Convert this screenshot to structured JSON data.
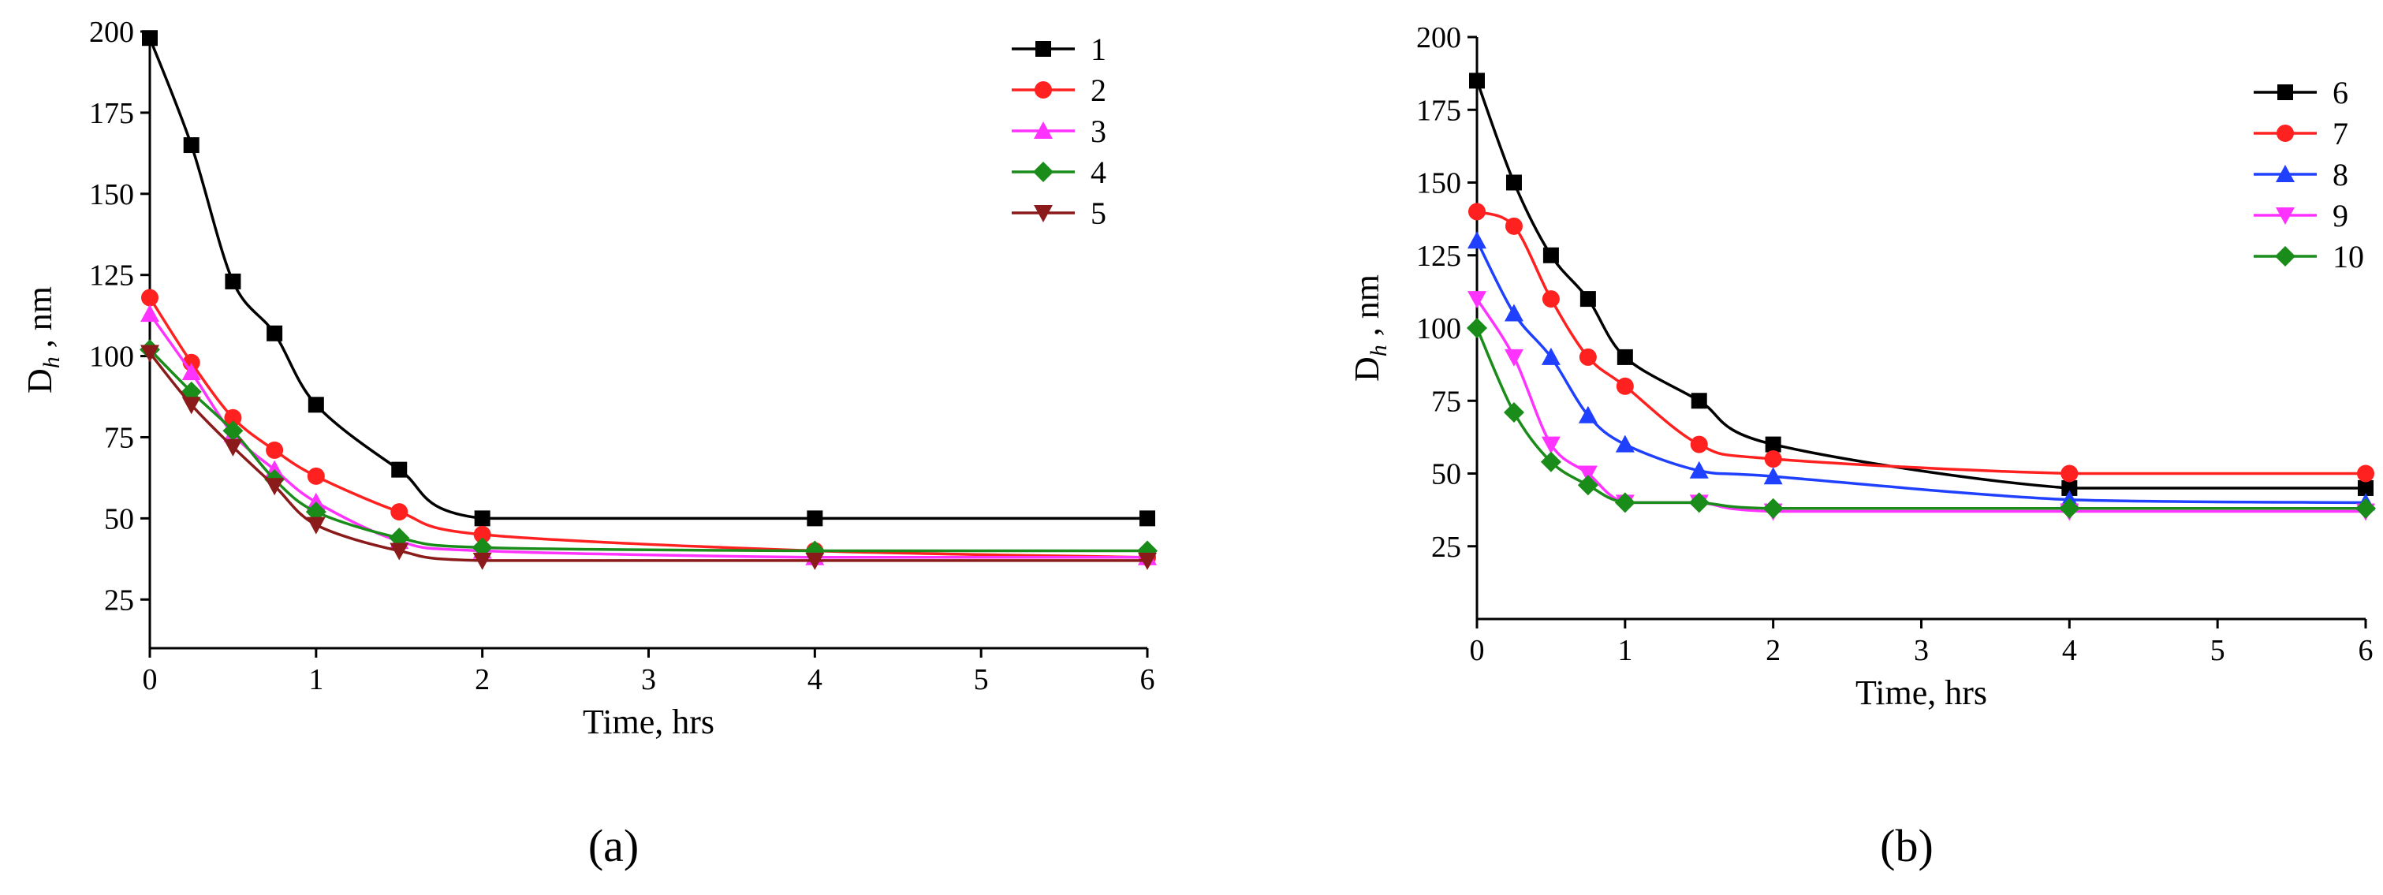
{
  "chart_data": [
    {
      "type": "line",
      "panel": "a",
      "caption": "(a)",
      "xlabel": "Time, hrs",
      "ylabel_main": "D",
      "ylabel_sub": "h",
      "ylabel_unit": " , nm",
      "xlim": [
        0,
        6
      ],
      "ylim": [
        10,
        200
      ],
      "xticks": [
        0,
        1,
        2,
        3,
        4,
        5,
        6
      ],
      "yticks": [
        25,
        50,
        75,
        100,
        125,
        150,
        175,
        200
      ],
      "legend_position": "top-right",
      "x": [
        0,
        0.25,
        0.5,
        0.75,
        1,
        1.5,
        2,
        4,
        6
      ],
      "series": [
        {
          "name": "1",
          "color": "#000000",
          "marker": "square",
          "values": [
            198,
            165,
            123,
            107,
            85,
            65,
            50,
            50,
            50
          ]
        },
        {
          "name": "2",
          "color": "#ff2020",
          "marker": "circle",
          "values": [
            118,
            98,
            81,
            71,
            63,
            52,
            45,
            40,
            38
          ]
        },
        {
          "name": "3",
          "color": "#ff33ff",
          "marker": "triangle-up",
          "values": [
            113,
            95,
            76,
            65,
            55,
            43,
            40,
            38,
            38
          ]
        },
        {
          "name": "4",
          "color": "#1a8c1a",
          "marker": "diamond",
          "values": [
            102,
            89,
            77,
            62,
            52,
            44,
            41,
            40,
            40
          ]
        },
        {
          "name": "5",
          "color": "#8b1a1a",
          "marker": "triangle-down",
          "values": [
            101,
            85,
            72,
            60,
            48,
            40,
            37,
            37,
            37
          ]
        }
      ]
    },
    {
      "type": "line",
      "panel": "b",
      "caption": "(b)",
      "xlabel": "Time, hrs",
      "ylabel_main": "D",
      "ylabel_sub": "h",
      "ylabel_unit": " , nm",
      "xlim": [
        0,
        6
      ],
      "ylim": [
        0,
        200
      ],
      "xticks": [
        0,
        1,
        2,
        3,
        4,
        5,
        6
      ],
      "yticks": [
        25,
        50,
        75,
        100,
        125,
        150,
        175,
        200
      ],
      "legend_position": "top-right",
      "x": [
        0,
        0.25,
        0.5,
        0.75,
        1,
        1.5,
        2,
        4,
        6
      ],
      "series": [
        {
          "name": "6",
          "color": "#000000",
          "marker": "square",
          "values": [
            185,
            150,
            125,
            110,
            90,
            75,
            60,
            45,
            45
          ]
        },
        {
          "name": "7",
          "color": "#ff2020",
          "marker": "circle",
          "values": [
            140,
            135,
            110,
            90,
            80,
            60,
            55,
            50,
            50
          ]
        },
        {
          "name": "8",
          "color": "#2040ff",
          "marker": "triangle-up",
          "values": [
            130,
            105,
            90,
            70,
            60,
            51,
            49,
            41,
            40
          ]
        },
        {
          "name": "9",
          "color": "#ff33ff",
          "marker": "triangle-down",
          "values": [
            110,
            90,
            60,
            50,
            40,
            40,
            37,
            37,
            37
          ]
        },
        {
          "name": "10",
          "color": "#1a8c1a",
          "marker": "diamond",
          "values": [
            100,
            71,
            54,
            46,
            40,
            40,
            38,
            38,
            38
          ]
        }
      ]
    }
  ]
}
